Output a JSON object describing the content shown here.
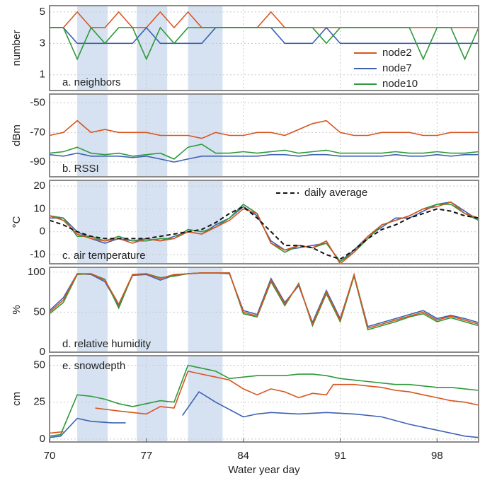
{
  "chart_data": [
    {
      "type": "line",
      "panel_label": "a. neighbors",
      "label_corner": "lower left",
      "ylabel": "number",
      "xlim": [
        70,
        101
      ],
      "ylim": [
        0,
        5.4
      ],
      "yticks": [
        1,
        3,
        5
      ],
      "legend": "lower right",
      "shaded": [
        [
          72,
          74.2
        ],
        [
          76.3,
          78.5
        ],
        [
          80,
          82.5
        ]
      ],
      "x": [
        70,
        71,
        72,
        73,
        74,
        75,
        76,
        77,
        78,
        79,
        80,
        81,
        82,
        83,
        84,
        85,
        86,
        87,
        88,
        89,
        90,
        91,
        92,
        93,
        94,
        95,
        96,
        97,
        98,
        99,
        100,
        101
      ],
      "series": [
        {
          "name": "node2",
          "color": "#d9541e",
          "values": [
            4,
            4,
            5,
            4,
            4,
            5,
            4,
            4,
            5,
            4,
            5,
            4,
            4,
            4,
            4,
            4,
            5,
            4,
            4,
            4,
            4,
            4,
            4,
            4,
            4,
            4,
            4,
            4,
            4,
            4,
            4,
            4
          ]
        },
        {
          "name": "node7",
          "color": "#3d62b3",
          "values": [
            4,
            4,
            3,
            3,
            3,
            3,
            3,
            4,
            3,
            3,
            3,
            3,
            4,
            4,
            4,
            4,
            4,
            3,
            3,
            3,
            4,
            3,
            3,
            3,
            3,
            3,
            3,
            3,
            3,
            3,
            3,
            3
          ]
        },
        {
          "name": "node10",
          "color": "#2e9a3a",
          "values": [
            4,
            4,
            2,
            4,
            3,
            4,
            4,
            2,
            4,
            3,
            4,
            4,
            4,
            4,
            4,
            4,
            4,
            4,
            4,
            4,
            3,
            4,
            4,
            4,
            4,
            4,
            4,
            2,
            4,
            4,
            2,
            4
          ]
        }
      ]
    },
    {
      "type": "line",
      "panel_label": "b. RSSI",
      "label_corner": "lower left",
      "ylabel": "dBm",
      "xlim": [
        70,
        101
      ],
      "ylim": [
        -100,
        -44
      ],
      "yticks": [
        -90,
        -70,
        -50
      ],
      "shaded": [
        [
          72,
          74.2
        ],
        [
          76.3,
          78.5
        ],
        [
          80,
          82.5
        ]
      ],
      "x": [
        70,
        71,
        72,
        73,
        74,
        75,
        76,
        77,
        78,
        79,
        80,
        81,
        82,
        83,
        84,
        85,
        86,
        87,
        88,
        89,
        90,
        91,
        92,
        93,
        94,
        95,
        96,
        97,
        98,
        99,
        100,
        101
      ],
      "series": [
        {
          "color": "#d9541e",
          "values": [
            -72,
            -70,
            -62,
            -70,
            -68,
            -70,
            -70,
            -70,
            -72,
            -72,
            -72,
            -74,
            -70,
            -72,
            -72,
            -70,
            -70,
            -72,
            -68,
            -64,
            -62,
            -70,
            -72,
            -72,
            -70,
            -70,
            -70,
            -72,
            -72,
            -70,
            -70,
            -70
          ]
        },
        {
          "color": "#3d62b3",
          "values": [
            -85,
            -86,
            -84,
            -86,
            -86,
            -86,
            -87,
            -86,
            -88,
            -90,
            -88,
            -86,
            -86,
            -86,
            -86,
            -86,
            -85,
            -85,
            -86,
            -85,
            -85,
            -86,
            -86,
            -86,
            -86,
            -85,
            -86,
            -86,
            -85,
            -86,
            -85,
            -85
          ]
        },
        {
          "color": "#2e9a3a",
          "values": [
            -84,
            -83,
            -80,
            -84,
            -85,
            -84,
            -86,
            -85,
            -84,
            -88,
            -80,
            -78,
            -84,
            -84,
            -83,
            -84,
            -83,
            -82,
            -84,
            -83,
            -82,
            -84,
            -84,
            -84,
            -84,
            -83,
            -84,
            -84,
            -83,
            -84,
            -84,
            -83
          ]
        }
      ]
    },
    {
      "type": "line",
      "panel_label": "c. air temperature",
      "label_corner": "lower left",
      "ylabel": "°C",
      "xlim": [
        70,
        101
      ],
      "ylim": [
        -14,
        22.5
      ],
      "yticks": [
        -10,
        0,
        10,
        20
      ],
      "legend": "upper center",
      "shaded": [
        [
          72,
          74.2
        ],
        [
          76.3,
          78.5
        ],
        [
          80,
          82.5
        ]
      ],
      "x": [
        70,
        71,
        72,
        73,
        74,
        75,
        76,
        77,
        78,
        79,
        80,
        81,
        82,
        83,
        84,
        85,
        86,
        87,
        88,
        89,
        90,
        91,
        92,
        93,
        94,
        95,
        96,
        97,
        98,
        99,
        100,
        101
      ],
      "series": [
        {
          "color": "#3d62b3",
          "values": [
            6,
            6,
            0,
            -3,
            -5,
            -3,
            -4,
            -3,
            -4,
            -2,
            0,
            -1,
            3,
            6,
            11,
            7,
            -4,
            -8,
            -7,
            -6,
            -5,
            -13,
            -8,
            -2,
            2,
            6,
            6,
            9,
            12,
            13,
            9,
            5
          ]
        },
        {
          "color": "#2e9a3a",
          "values": [
            7,
            6,
            -2,
            -2,
            -4,
            -2,
            -4,
            -4,
            -3,
            -3,
            1,
            0,
            2,
            6,
            12,
            8,
            -5,
            -9,
            -6,
            -7,
            -5,
            -13,
            -9,
            -3,
            3,
            5,
            7,
            10,
            12,
            12,
            8,
            5
          ]
        },
        {
          "color": "#d9541e",
          "values": [
            7,
            5,
            -1,
            -3,
            -4,
            -3,
            -5,
            -3,
            -4,
            -3,
            0,
            -1,
            2,
            5,
            10,
            8,
            -5,
            -8,
            -6,
            -7,
            -4,
            -14,
            -9,
            -2,
            3,
            5,
            7,
            10,
            11,
            13,
            8,
            6
          ]
        },
        {
          "name": "daily average",
          "color": "#111111",
          "dashed": true,
          "values": [
            5,
            3,
            0,
            -2,
            -3,
            -3,
            -3,
            -3,
            -2,
            -1,
            0,
            1,
            4,
            8,
            11,
            6,
            0,
            -6,
            -6,
            -7,
            -10,
            -12,
            -8,
            -3,
            1,
            3,
            6,
            8,
            10,
            9,
            7,
            6
          ]
        }
      ]
    },
    {
      "type": "line",
      "panel_label": "d. relative humidity",
      "label_corner": "lower left",
      "ylabel": "%",
      "xlim": [
        70,
        101
      ],
      "ylim": [
        0,
        106
      ],
      "yticks": [
        0,
        50,
        100
      ],
      "shaded": [
        [
          72,
          74.2
        ],
        [
          76.3,
          78.5
        ],
        [
          80,
          82.5
        ]
      ],
      "x": [
        70,
        71,
        72,
        73,
        74,
        75,
        76,
        77,
        78,
        79,
        80,
        81,
        82,
        83,
        84,
        85,
        86,
        87,
        88,
        89,
        90,
        91,
        92,
        93,
        94,
        95,
        96,
        97,
        98,
        99,
        100,
        101
      ],
      "series": [
        {
          "color": "#3d62b3",
          "values": [
            52,
            68,
            98,
            97,
            88,
            58,
            96,
            97,
            90,
            96,
            98,
            99,
            99,
            98,
            52,
            47,
            92,
            62,
            83,
            37,
            77,
            42,
            96,
            32,
            37,
            42,
            47,
            52,
            42,
            46,
            42,
            37
          ]
        },
        {
          "color": "#2e9a3a",
          "values": [
            48,
            62,
            97,
            98,
            91,
            55,
            97,
            98,
            93,
            95,
            98,
            99,
            99,
            99,
            48,
            44,
            88,
            58,
            86,
            33,
            73,
            38,
            95,
            28,
            33,
            38,
            44,
            48,
            38,
            43,
            38,
            33
          ]
        },
        {
          "color": "#d9541e",
          "values": [
            50,
            65,
            98,
            98,
            90,
            60,
            97,
            98,
            92,
            97,
            98,
            99,
            99,
            99,
            50,
            45,
            90,
            60,
            85,
            35,
            75,
            40,
            97,
            30,
            35,
            40,
            45,
            50,
            40,
            45,
            40,
            35
          ]
        }
      ]
    },
    {
      "type": "line",
      "panel_label": "e. snowdepth",
      "label_corner": "upper left",
      "ylabel": "cm",
      "xlabel": "Water year day",
      "xlim": [
        70,
        101
      ],
      "ylim": [
        -2,
        56.5
      ],
      "yticks": [
        0,
        25,
        50
      ],
      "xticks": [
        70,
        77,
        84,
        91,
        98
      ],
      "shaded": [
        [
          72,
          74.2
        ],
        [
          76.3,
          78.5
        ],
        [
          80,
          82.5
        ]
      ],
      "series": [
        {
          "color": "#2e9a3a",
          "x": [
            70,
            70.8,
            72,
            73,
            74,
            75,
            76,
            77,
            78,
            79,
            80,
            81,
            82,
            83,
            84,
            85,
            86,
            87,
            88,
            89,
            90,
            91,
            92,
            93,
            94,
            95,
            96,
            97,
            98,
            99,
            100,
            101
          ],
          "values": [
            2,
            3,
            30,
            29,
            27,
            24,
            22,
            24,
            26,
            25,
            50,
            48,
            46,
            41,
            42,
            43,
            43,
            43,
            44,
            44,
            43,
            41,
            40,
            39,
            38,
            37,
            37,
            36,
            35,
            35,
            34,
            33
          ]
        },
        {
          "color": "#d9541e",
          "x": [
            70,
            71,
            null,
            73.3,
            75,
            76,
            77,
            78,
            79,
            80,
            81,
            82,
            83,
            84,
            85,
            86,
            87,
            88,
            89,
            90,
            90.5,
            91,
            92,
            93,
            94,
            95,
            96,
            97,
            98,
            99,
            100,
            101
          ],
          "values": [
            4,
            5,
            null,
            21,
            19,
            18,
            17,
            22,
            21,
            46,
            44,
            42,
            40,
            34,
            30,
            34,
            32,
            28,
            31,
            30,
            37,
            37,
            37,
            36,
            35,
            33,
            32,
            30,
            28,
            26,
            25,
            23
          ]
        },
        {
          "color": "#3d62b3",
          "x": [
            70,
            70.8,
            72,
            73,
            74.5,
            75.5,
            null,
            79.6,
            80.8,
            82,
            84,
            85,
            86,
            88,
            90,
            92,
            94,
            96,
            98,
            100,
            101
          ],
          "values": [
            1,
            2,
            14,
            12,
            11,
            11,
            null,
            16,
            32,
            25,
            15,
            17,
            18,
            17,
            18,
            17,
            15,
            10,
            6,
            2,
            1
          ]
        }
      ]
    }
  ]
}
